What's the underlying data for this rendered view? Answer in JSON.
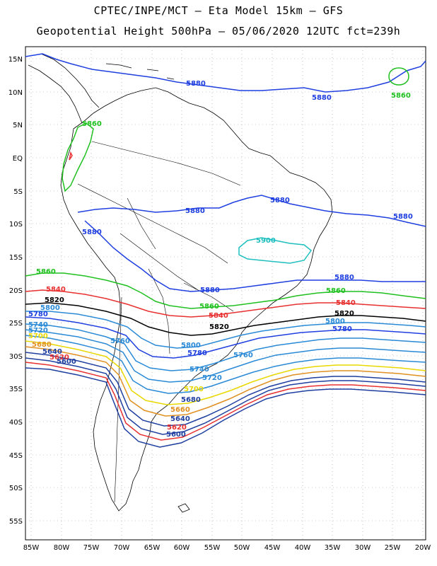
{
  "title_line1": "CPTEC/INPE/MCT –  Eta Model 15km – GFS",
  "title_line2": "Geopotential Height 500hPa – 05/06/2020 12UTC fct=239h",
  "lat_labels": [
    "15N",
    "10N",
    "5N",
    "EQ",
    "5S",
    "10S",
    "15S",
    "20S",
    "25S",
    "30S",
    "35S",
    "40S",
    "45S",
    "50S",
    "55S"
  ],
  "lon_labels": [
    "85W",
    "80W",
    "75W",
    "70W",
    "65W",
    "60W",
    "55W",
    "50W",
    "45W",
    "40W",
    "35W",
    "30W",
    "25W",
    "20W"
  ],
  "contour_labels": [
    {
      "text": "5880",
      "color": "#1f3fe0"
    },
    {
      "text": "5880",
      "color": "#1f3fe0"
    },
    {
      "text": "5880",
      "color": "#1f3fe0"
    },
    {
      "text": "5880",
      "color": "#1f3fe0"
    },
    {
      "text": "5880",
      "color": "#1f3fe0"
    },
    {
      "text": "5880",
      "color": "#1f3fe0"
    },
    {
      "text": "5880",
      "color": "#1f3fe0"
    },
    {
      "text": "5880",
      "color": "#1f3fe0"
    },
    {
      "text": "5860",
      "color": "#1fc01f"
    },
    {
      "text": "5860",
      "color": "#1fc01f"
    },
    {
      "text": "5860",
      "color": "#1fc01f"
    },
    {
      "text": "5860",
      "color": "#1fc01f"
    },
    {
      "text": "5860",
      "color": "#1fc01f"
    },
    {
      "text": "5900",
      "color": "#1fbfbf"
    },
    {
      "text": "5840",
      "color": "#e83030"
    },
    {
      "text": "5840",
      "color": "#e83030"
    },
    {
      "text": "5840",
      "color": "#e83030"
    },
    {
      "text": "5820",
      "color": "#000000"
    },
    {
      "text": "5820",
      "color": "#000000"
    },
    {
      "text": "5820",
      "color": "#000000"
    },
    {
      "text": "5800",
      "color": "#2a8ad6"
    },
    {
      "text": "5800",
      "color": "#2a8ad6"
    },
    {
      "text": "5800",
      "color": "#2a8ad6"
    },
    {
      "text": "5780",
      "color": "#1f3fe0"
    },
    {
      "text": "5780",
      "color": "#1f3fe0"
    },
    {
      "text": "5780",
      "color": "#1f3fe0"
    },
    {
      "text": "5760",
      "color": "#2a8ad6"
    },
    {
      "text": "5760",
      "color": "#2a8ad6"
    },
    {
      "text": "5740",
      "color": "#2a8ad6"
    },
    {
      "text": "5740",
      "color": "#2a8ad6"
    },
    {
      "text": "5720",
      "color": "#2a8ad6"
    },
    {
      "text": "5720",
      "color": "#2a8ad6"
    },
    {
      "text": "5700",
      "color": "#e8d800"
    },
    {
      "text": "5700",
      "color": "#e8d800"
    },
    {
      "text": "5680",
      "color": "#e09020"
    },
    {
      "text": "5680",
      "color": "#1f3fa0"
    },
    {
      "text": "5660",
      "color": "#e09020"
    },
    {
      "text": "5640",
      "color": "#1f3fa0"
    },
    {
      "text": "5640",
      "color": "#1f3fa0"
    },
    {
      "text": "5620",
      "color": "#e83030"
    },
    {
      "text": "5620",
      "color": "#e83030"
    },
    {
      "text": "5600",
      "color": "#1f3fa0"
    },
    {
      "text": "5600",
      "color": "#1f3fa0"
    }
  ]
}
